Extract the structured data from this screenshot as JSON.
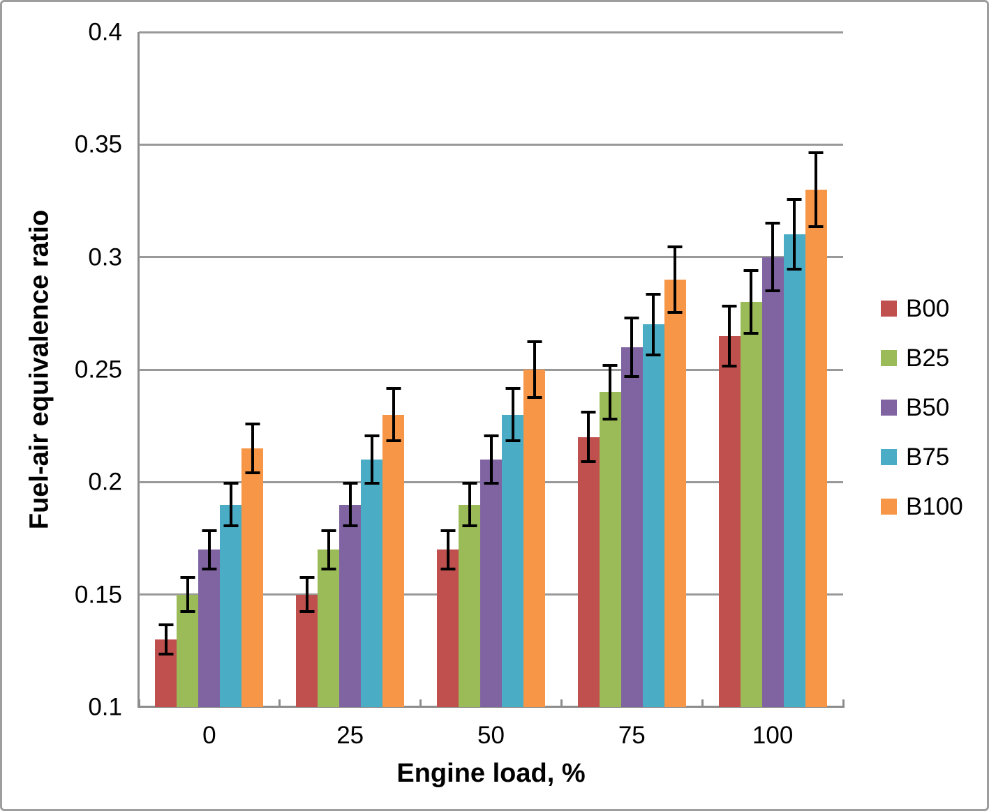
{
  "chart_data": {
    "type": "bar",
    "title": "",
    "xlabel": "Engine load, %",
    "ylabel": "Fuel-air equivalence ratio",
    "categories": [
      "0",
      "25",
      "50",
      "75",
      "100"
    ],
    "series": [
      {
        "name": "B00",
        "color": "#C0504D",
        "values": [
          0.13,
          0.15,
          0.17,
          0.22,
          0.265
        ],
        "errors": [
          0.0065,
          0.0075,
          0.0085,
          0.011,
          0.0133
        ]
      },
      {
        "name": "B25",
        "color": "#9BBB59",
        "values": [
          0.15,
          0.17,
          0.19,
          0.24,
          0.28
        ],
        "errors": [
          0.0075,
          0.0085,
          0.0095,
          0.012,
          0.014
        ]
      },
      {
        "name": "B50",
        "color": "#8064A2",
        "values": [
          0.17,
          0.19,
          0.21,
          0.26,
          0.3
        ],
        "errors": [
          0.0085,
          0.0095,
          0.0105,
          0.013,
          0.015
        ]
      },
      {
        "name": "B75",
        "color": "#4BACC6",
        "values": [
          0.19,
          0.21,
          0.23,
          0.27,
          0.31
        ],
        "errors": [
          0.0095,
          0.0105,
          0.0115,
          0.0135,
          0.0155
        ]
      },
      {
        "name": "B100",
        "color": "#F79646",
        "values": [
          0.215,
          0.23,
          0.25,
          0.29,
          0.33
        ],
        "errors": [
          0.0108,
          0.0115,
          0.0125,
          0.0145,
          0.0165
        ]
      }
    ],
    "ylim": [
      0.1,
      0.4
    ],
    "yticks": [
      "0.1",
      "0.15",
      "0.2",
      "0.25",
      "0.3",
      "0.35",
      "0.4"
    ],
    "grid": true,
    "error_bars": true,
    "legend_position": "right",
    "colors": {
      "gridline": "#999999",
      "axis": "#8c8c8c",
      "error_bar": "#000000",
      "text": "#000000",
      "frame_border": "#9e9e9e",
      "background": "#ffffff"
    }
  }
}
